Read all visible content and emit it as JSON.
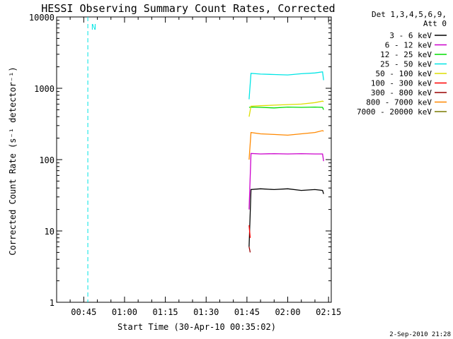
{
  "chart_data": {
    "type": "line",
    "title": "HESSI Observing Summary Count Rates, Corrected",
    "xlabel": "Start Time (30-Apr-10 00:35:02)",
    "ylabel": "Corrected Count Rate (s⁻¹ detector⁻¹)",
    "yscale": "log",
    "ylim": [
      1,
      10000
    ],
    "xlim_minutes": [
      35.03,
      136.0
    ],
    "x_units": "minutes after 00:00 UT, 30-Apr-2010",
    "x_ticks": [
      {
        "label": "00:45",
        "minute": 45
      },
      {
        "label": "01:00",
        "minute": 60
      },
      {
        "label": "01:15",
        "minute": 75
      },
      {
        "label": "01:30",
        "minute": 90
      },
      {
        "label": "01:45",
        "minute": 105
      },
      {
        "label": "02:00",
        "minute": 120
      },
      {
        "label": "02:15",
        "minute": 135
      }
    ],
    "y_ticks": [
      {
        "label": "1",
        "value": 1
      },
      {
        "label": "10",
        "value": 10
      },
      {
        "label": "100",
        "value": 100
      },
      {
        "label": "1000",
        "value": 1000
      },
      {
        "label": "10000",
        "value": 10000
      }
    ],
    "legend_header": [
      "Det 1,3,4,5,6,9,",
      "Att 0"
    ],
    "legend_placement": "right",
    "series": [
      {
        "name": "3 - 6 keV",
        "color": "#000000",
        "segments": [
          {
            "x": [
              105.8,
              106.5,
              110,
              115,
              120,
              125,
              130,
              132.8,
              133.2
            ],
            "y": [
              6,
              38,
              39,
              38,
              39,
              37,
              38,
              37,
              33
            ]
          }
        ]
      },
      {
        "name": "6 - 12 keV",
        "color": "#cc00cc",
        "segments": [
          {
            "x": [
              105.8,
              106.5,
              110,
              115,
              120,
              125,
              130,
              132.8,
              133.2
            ],
            "y": [
              20,
              122,
              120,
              121,
              120,
              121,
              120,
              120,
              95
            ]
          }
        ]
      },
      {
        "name": "12 - 25 keV",
        "color": "#00dd00",
        "segments": [
          {
            "x": [
              105.8,
              106.5,
              110,
              115,
              120,
              125,
              130,
              132.8,
              133.2
            ],
            "y": [
              540,
              545,
              540,
              530,
              545,
              540,
              545,
              540,
              500
            ]
          }
        ]
      },
      {
        "name": "25 - 50 keV",
        "color": "#00e5e5",
        "segments": [
          {
            "x": [
              105.8,
              106.5,
              110,
              115,
              120,
              125,
              130,
              132.8,
              133.2
            ],
            "y": [
              700,
              1620,
              1580,
              1560,
              1540,
              1600,
              1640,
              1700,
              1300
            ]
          }
        ]
      },
      {
        "name": "50 - 100 keV",
        "color": "#dddd00",
        "segments": [
          {
            "x": [
              105.8,
              106.5,
              110,
              115,
              120,
              125,
              130,
              132.8,
              133.2
            ],
            "y": [
              400,
              560,
              570,
              580,
              590,
              600,
              630,
              660,
              650
            ]
          }
        ]
      },
      {
        "name": "100 - 300 keV",
        "color": "#ff0000",
        "segments": [
          {
            "x": [
              105.8,
              106.2
            ],
            "y": [
              12,
              8
            ]
          }
        ]
      },
      {
        "name": "300 - 800 keV",
        "color": "#990000",
        "segments": [
          {
            "x": [
              105.8,
              106.2
            ],
            "y": [
              6,
              5
            ]
          }
        ]
      },
      {
        "name": "800 - 7000 keV",
        "color": "#ff8800",
        "segments": [
          {
            "x": [
              105.8,
              106.5,
              110,
              115,
              120,
              125,
              130,
              132.8,
              133.2
            ],
            "y": [
              100,
              240,
              230,
              225,
              220,
              230,
              240,
              255,
              250
            ]
          }
        ]
      },
      {
        "name": "7000 - 20000 keV",
        "color": "#7a7a00",
        "segments": []
      }
    ],
    "flags": [
      {
        "label": "N",
        "color": "#00e5e5",
        "x_minutes": 46.5
      }
    ],
    "footer_date": "2-Sep-2010 21:28"
  }
}
